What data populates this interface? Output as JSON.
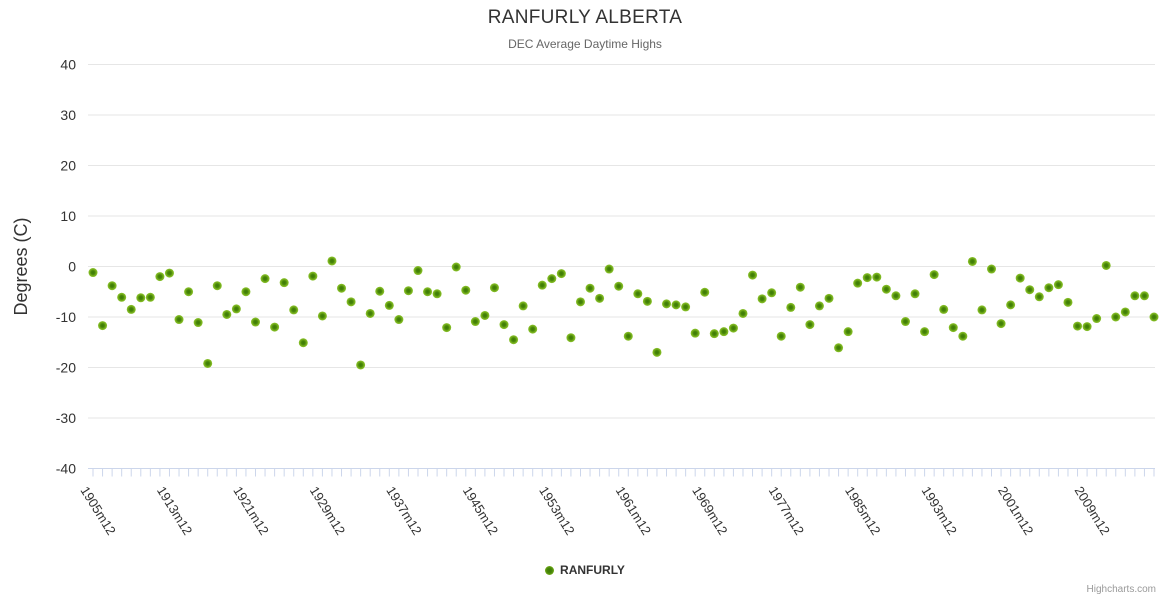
{
  "credits": {
    "label": "Highcharts.com"
  },
  "colors": {
    "background": "#ffffff",
    "grid": "#e6e6e6",
    "axis": "#ccd6eb",
    "title_text": "#333333",
    "subtitle_text": "#666666",
    "axis_label_text": "#333333",
    "credits_text": "#999999",
    "marker_outer": "#8bc430",
    "marker_inner": "#3d7a03"
  },
  "chart_data": {
    "type": "scatter",
    "title": "RANFURLY ALBERTA",
    "subtitle": "DEC Average Daytime Highs",
    "xlabel": "",
    "ylabel": "Degrees (C)",
    "ylim": [
      -40,
      40
    ],
    "y_ticks": [
      40,
      30,
      20,
      10,
      0,
      -10,
      -20,
      -30,
      -40
    ],
    "x_tick_labels": [
      "1905m12",
      "1913m12",
      "1921m12",
      "1929m12",
      "1937m12",
      "1945m12",
      "1953m12",
      "1961m12",
      "1969m12",
      "1977m12",
      "1985m12",
      "1993m12",
      "2001m12",
      "2009m12"
    ],
    "grid": "horizontal",
    "legend_position": "bottom",
    "series": [
      {
        "name": "RANFURLY",
        "start_year": 1905,
        "end_year": 2016,
        "x_label_suffix": "m12",
        "values": [
          -1.2,
          -11.7,
          -3.8,
          -6.1,
          -8.5,
          -6.2,
          -6.1,
          -2.0,
          -1.3,
          -10.5,
          -5.0,
          -11.1,
          -19.2,
          -3.8,
          -9.5,
          -8.4,
          -5.0,
          -11.0,
          -2.4,
          -12.0,
          -3.2,
          -8.6,
          -15.1,
          -1.9,
          -9.8,
          1.1,
          -4.3,
          -7.0,
          -19.5,
          -9.3,
          -4.9,
          -7.7,
          -10.5,
          -4.8,
          -0.8,
          -5.0,
          -5.4,
          -12.1,
          -0.1,
          -4.7,
          -10.9,
          -9.7,
          -4.2,
          -11.5,
          -14.5,
          -7.8,
          -12.4,
          -3.7,
          -2.4,
          -1.4,
          -14.1,
          -7.0,
          -4.3,
          -6.3,
          -0.5,
          -3.9,
          -13.8,
          -5.4,
          -6.9,
          -17.0,
          -7.4,
          -7.6,
          -8.0,
          -13.2,
          -5.1,
          -13.3,
          -12.9,
          -12.2,
          -9.3,
          -1.7,
          -6.4,
          -5.2,
          -13.8,
          -8.1,
          -4.1,
          -11.5,
          -7.8,
          -6.3,
          -16.1,
          -12.9,
          -3.3,
          -2.2,
          -2.1,
          -4.5,
          -5.8,
          -10.9,
          -5.4,
          -12.9,
          -1.6,
          -8.5,
          -12.1,
          -13.8,
          1.0,
          -8.6,
          -0.5,
          -11.3,
          -7.6,
          -2.3,
          -4.6,
          -6.0,
          -4.2,
          -3.6,
          -7.1,
          -11.8,
          -11.9,
          -10.3,
          0.2,
          -10.0,
          -9.0,
          -5.8,
          -5.8,
          -10.0
        ]
      }
    ]
  }
}
